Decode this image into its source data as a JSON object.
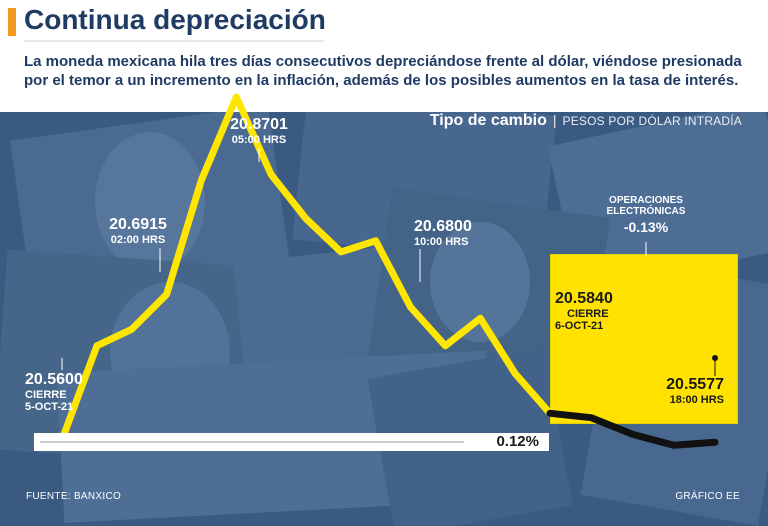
{
  "header": {
    "title": "Continua depreciación",
    "subtitle": "La moneda mexicana hila tres días consecutivos depreciándose frente al dólar, viéndose presionada  por el temor a un incremento en la inflación, además de los posibles aumentos en la tasa de interés."
  },
  "chart_header": {
    "title": "Tipo de cambio",
    "separator": "|",
    "unit": "PESOS POR DÓLAR INTRADÍA"
  },
  "labels": {
    "start": {
      "value": "20.5600",
      "line1": "CIERRE",
      "line2": "5-OCT-21"
    },
    "p0200": {
      "value": "20.6915",
      "time": "02:00 HRS"
    },
    "p0500": {
      "value": "20.8701",
      "time": "05:00 HRS"
    },
    "p1000": {
      "value": "20.6800",
      "time": "10:00 HRS"
    },
    "close": {
      "value": "20.5840",
      "line1": "CIERRE",
      "line2": "6-OCT-21"
    },
    "end": {
      "value": "20.5577",
      "time": "18:00 HRS"
    },
    "electronic": {
      "line1": "OPERACIONES",
      "line2": "ELECTRÓNICAS",
      "change": "-0.13%"
    }
  },
  "progress": {
    "label": "0.12%",
    "value_percent": 0.12
  },
  "footer": {
    "source": "FUENTE: BANXICO",
    "credit": "GRÁFICO EE"
  },
  "colors": {
    "accent": "#f39a1f",
    "title_text": "#1f3b63",
    "chart_background": "#3b5a82",
    "line_session": "#ffe600",
    "line_electronic": "#111111",
    "highlight_box": "#ffe200"
  },
  "chart_data": {
    "type": "line",
    "title": "Tipo de cambio",
    "unit": "PESOS POR DÓLAR INTRADÍA",
    "ylim": [
      20.52,
      20.9
    ],
    "series": [
      {
        "values": [
          20.56,
          20.645,
          20.66,
          20.6915,
          20.795,
          20.8701,
          20.8,
          20.76,
          20.73,
          20.74,
          20.68,
          20.645,
          20.67,
          20.62,
          20.584
        ]
      },
      {
        "values": [
          20.584,
          20.58,
          20.565,
          20.555,
          20.5577
        ]
      }
    ],
    "annotations": [
      {
        "text": "20.5600",
        "note": "CIERRE 5-OCT-21"
      },
      {
        "text": "20.6915",
        "note": "02:00 HRS"
      },
      {
        "text": "20.8701",
        "note": "05:00 HRS"
      },
      {
        "text": "20.6800",
        "note": "10:00 HRS"
      },
      {
        "text": "20.5840",
        "note": "CIERRE 6-OCT-21"
      },
      {
        "text": "20.5577",
        "note": "18:00 HRS"
      },
      {
        "text": "-0.13%",
        "note": "OPERACIONES ELECTRÓNICAS"
      }
    ],
    "grid": false
  }
}
